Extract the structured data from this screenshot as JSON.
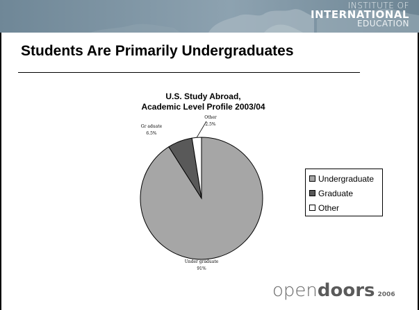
{
  "header": {
    "brand_lines": [
      "INSTITUTE OF",
      "INTERNATIONAL",
      "EDUCATION"
    ]
  },
  "slide": {
    "title": "Students Are Primarily Undergraduates"
  },
  "chart_data": {
    "type": "pie",
    "title_lines": [
      "U.S. Study Abroad,",
      "Academic Level Profile 2003/04"
    ],
    "slices": [
      {
        "name": "Undergraduate",
        "value": 91,
        "label_name": "Under graduate",
        "label_value": "91%",
        "color": "#a6a6a6"
      },
      {
        "name": "Graduate",
        "value": 6.5,
        "label_name": "Gr aduate",
        "label_value": "6.5%",
        "color": "#595959"
      },
      {
        "name": "Other",
        "value": 2.5,
        "label_name": "Other",
        "label_value": "2.5%",
        "color": "#ffffff"
      }
    ],
    "legend_position": "right"
  },
  "logo": {
    "main": "open",
    "bold": "doors",
    "year": "2006"
  }
}
